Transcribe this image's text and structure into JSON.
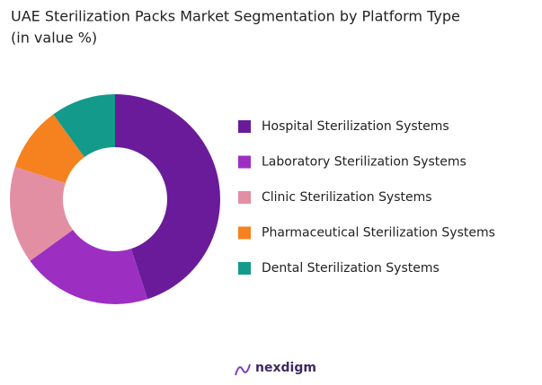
{
  "chart_data": {
    "type": "donut",
    "title": "UAE Sterilization Packs Market Segmentation by Platform Type",
    "subtitle": "(in value %)",
    "categories": [
      "Hospital Sterilization Systems",
      "Laboratory Sterilization Systems",
      "Clinic Sterilization Systems",
      "Pharmaceutical Sterilization Systems",
      "Dental Sterilization Systems"
    ],
    "values": [
      45,
      20,
      15,
      10,
      10
    ],
    "colors": [
      "#6a1b9a",
      "#9c2fc2",
      "#e28fa3",
      "#f5821f",
      "#139a8b"
    ]
  },
  "logo": "nexdigm"
}
